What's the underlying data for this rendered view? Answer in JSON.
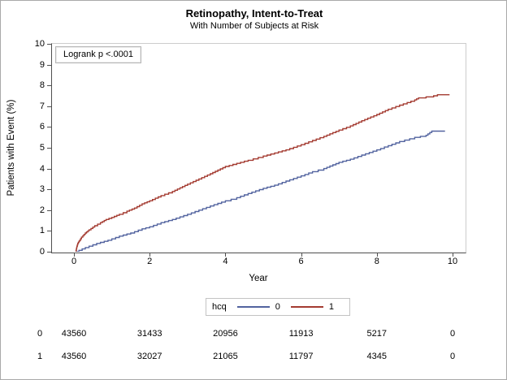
{
  "chart_data": {
    "type": "line",
    "title": "Retinopathy, Intent-to-Treat",
    "subtitle": "With Number of Subjects at Risk",
    "xlabel": "Year",
    "ylabel": "Patients with Event (%)",
    "xlim": [
      -0.6,
      10.4
    ],
    "ylim": [
      0,
      10
    ],
    "xticks": [
      0,
      2,
      4,
      6,
      8,
      10
    ],
    "yticks": [
      0,
      1,
      2,
      3,
      4,
      5,
      6,
      7,
      8,
      9,
      10
    ],
    "grid": false,
    "annotation": "Logrank p <.0001",
    "legend": {
      "title": "hcq",
      "position": "bottom",
      "entries": [
        {
          "label": "0",
          "color": "#52639f"
        },
        {
          "label": "1",
          "color": "#a43b31"
        }
      ]
    },
    "series": [
      {
        "name": "0",
        "group": "hcq=0",
        "color": "#52639f",
        "points": [
          [
            0.05,
            0
          ],
          [
            0.3,
            0.2
          ],
          [
            0.6,
            0.4
          ],
          [
            0.9,
            0.55
          ],
          [
            1.2,
            0.75
          ],
          [
            1.5,
            0.9
          ],
          [
            1.8,
            1.1
          ],
          [
            2.0,
            1.2
          ],
          [
            2.3,
            1.4
          ],
          [
            2.6,
            1.55
          ],
          [
            3.0,
            1.8
          ],
          [
            3.3,
            2.0
          ],
          [
            3.6,
            2.2
          ],
          [
            4.0,
            2.45
          ],
          [
            4.3,
            2.6
          ],
          [
            4.6,
            2.8
          ],
          [
            5.0,
            3.05
          ],
          [
            5.3,
            3.2
          ],
          [
            5.6,
            3.4
          ],
          [
            6.0,
            3.65
          ],
          [
            6.3,
            3.85
          ],
          [
            6.6,
            4.0
          ],
          [
            7.0,
            4.3
          ],
          [
            7.3,
            4.45
          ],
          [
            7.6,
            4.65
          ],
          [
            8.0,
            4.9
          ],
          [
            8.3,
            5.1
          ],
          [
            8.6,
            5.3
          ],
          [
            9.0,
            5.5
          ],
          [
            9.3,
            5.6
          ],
          [
            9.45,
            5.8
          ],
          [
            9.8,
            5.8
          ]
        ]
      },
      {
        "name": "1",
        "group": "hcq=1",
        "color": "#a43b31",
        "points": [
          [
            0.05,
            0
          ],
          [
            0.07,
            0.2
          ],
          [
            0.1,
            0.4
          ],
          [
            0.15,
            0.55
          ],
          [
            0.2,
            0.7
          ],
          [
            0.3,
            0.9
          ],
          [
            0.4,
            1.05
          ],
          [
            0.55,
            1.25
          ],
          [
            0.7,
            1.4
          ],
          [
            0.85,
            1.55
          ],
          [
            1.0,
            1.65
          ],
          [
            1.2,
            1.8
          ],
          [
            1.4,
            1.95
          ],
          [
            1.6,
            2.1
          ],
          [
            1.8,
            2.3
          ],
          [
            2.0,
            2.45
          ],
          [
            2.3,
            2.7
          ],
          [
            2.6,
            2.9
          ],
          [
            3.0,
            3.25
          ],
          [
            3.3,
            3.5
          ],
          [
            3.6,
            3.75
          ],
          [
            4.0,
            4.1
          ],
          [
            4.3,
            4.25
          ],
          [
            4.6,
            4.4
          ],
          [
            5.0,
            4.6
          ],
          [
            5.3,
            4.75
          ],
          [
            5.6,
            4.9
          ],
          [
            6.0,
            5.15
          ],
          [
            6.3,
            5.35
          ],
          [
            6.6,
            5.55
          ],
          [
            7.0,
            5.85
          ],
          [
            7.3,
            6.05
          ],
          [
            7.6,
            6.3
          ],
          [
            8.0,
            6.6
          ],
          [
            8.3,
            6.85
          ],
          [
            8.6,
            7.05
          ],
          [
            9.0,
            7.3
          ],
          [
            9.1,
            7.4
          ],
          [
            9.3,
            7.45
          ],
          [
            9.5,
            7.5
          ],
          [
            9.6,
            7.55
          ],
          [
            9.92,
            7.55
          ]
        ]
      }
    ],
    "at_risk_table": {
      "x_positions_years": [
        0,
        2,
        4,
        6,
        8,
        10
      ],
      "rows": [
        {
          "label": "0",
          "values": [
            "43560",
            "31433",
            "20956",
            "11913",
            "5217",
            "0"
          ]
        },
        {
          "label": "1",
          "values": [
            "43560",
            "32027",
            "21065",
            "11797",
            "4345",
            "0"
          ]
        }
      ]
    }
  }
}
